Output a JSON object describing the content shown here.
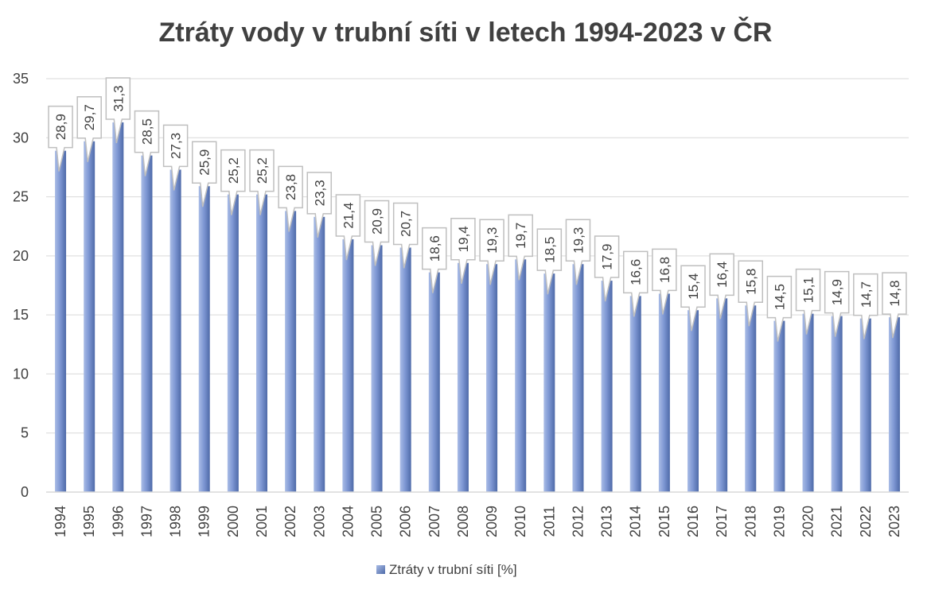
{
  "chart_data": {
    "type": "bar",
    "title": "Ztráty vody v trubní síti v letech 1994-2023 v ČR",
    "categories": [
      "1994",
      "1995",
      "1996",
      "1997",
      "1998",
      "1999",
      "2000",
      "2001",
      "2002",
      "2003",
      "2004",
      "2005",
      "2006",
      "2007",
      "2008",
      "2009",
      "2010",
      "2011",
      "2012",
      "2013",
      "2014",
      "2015",
      "2016",
      "2017",
      "2018",
      "2019",
      "2020",
      "2021",
      "2022",
      "2023"
    ],
    "series": [
      {
        "name": "Ztráty v trubní síti [%]",
        "values": [
          28.9,
          29.7,
          31.3,
          28.5,
          27.3,
          25.9,
          25.2,
          25.2,
          23.8,
          23.3,
          21.4,
          20.9,
          20.7,
          18.6,
          19.4,
          19.3,
          19.7,
          18.5,
          19.3,
          17.9,
          16.6,
          16.8,
          15.4,
          16.4,
          15.8,
          14.5,
          15.1,
          14.9,
          14.7,
          14.8
        ],
        "labels": [
          "28,9",
          "29,7",
          "31,3",
          "28,5",
          "27,3",
          "25,9",
          "25,2",
          "25,2",
          "23,8",
          "23,3",
          "21,4",
          "20,9",
          "20,7",
          "18,6",
          "19,4",
          "19,3",
          "19,7",
          "18,5",
          "19,3",
          "17,9",
          "16,6",
          "16,8",
          "15,4",
          "16,4",
          "15,8",
          "14,5",
          "15,1",
          "14,9",
          "14,7",
          "14,8"
        ]
      }
    ],
    "ylim": [
      0,
      35
    ],
    "yticks": [
      0,
      5,
      10,
      15,
      20,
      25,
      30,
      35
    ],
    "grid": true,
    "legend": "bottom",
    "colors": {
      "bar_light": "#a9bce6",
      "bar_mid": "#7f98d4",
      "bar_dark": "#4e6aa8",
      "grid": "#d9d9d9",
      "label_border": "#bfbfbf",
      "text": "#404040"
    }
  }
}
